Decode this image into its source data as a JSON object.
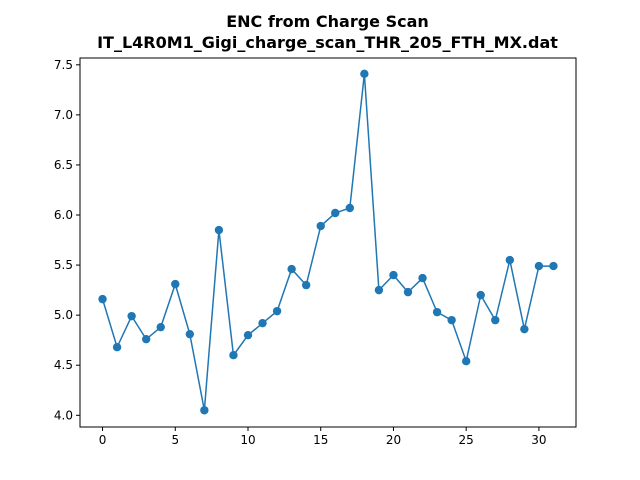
{
  "chart_data": {
    "type": "line",
    "title_line1": "ENC from Charge Scan",
    "title_line2": "IT_L4R0M1_Gigi_charge_scan_THR_205_FTH_MX.dat",
    "xlabel": "",
    "ylabel": "",
    "xlim": [
      -1.55,
      32.55
    ],
    "ylim": [
      3.883,
      7.568
    ],
    "grid": false,
    "legend": "none",
    "line_color": "#1f77b4",
    "marker": "circle",
    "x_ticks": [
      0,
      5,
      10,
      15,
      20,
      25,
      30
    ],
    "y_ticks": [
      4.0,
      4.5,
      5.0,
      5.5,
      6.0,
      6.5,
      7.0,
      7.5
    ],
    "series": [
      {
        "x": [
          0,
          1,
          2,
          3,
          4,
          5,
          6,
          7,
          8,
          9,
          10,
          11,
          12,
          13,
          14,
          15,
          16,
          17,
          18,
          19,
          20,
          21,
          22,
          23,
          24,
          25,
          26,
          27,
          28,
          29,
          30,
          31
        ],
        "values": [
          5.16,
          4.68,
          4.99,
          4.76,
          4.88,
          5.31,
          4.81,
          4.05,
          5.85,
          4.6,
          4.8,
          4.92,
          5.04,
          5.46,
          5.3,
          5.89,
          6.02,
          6.07,
          7.41,
          5.25,
          5.4,
          5.23,
          5.37,
          5.03,
          4.95,
          4.54,
          5.2,
          4.95,
          5.55,
          4.86,
          5.49,
          5.49
        ]
      }
    ]
  }
}
